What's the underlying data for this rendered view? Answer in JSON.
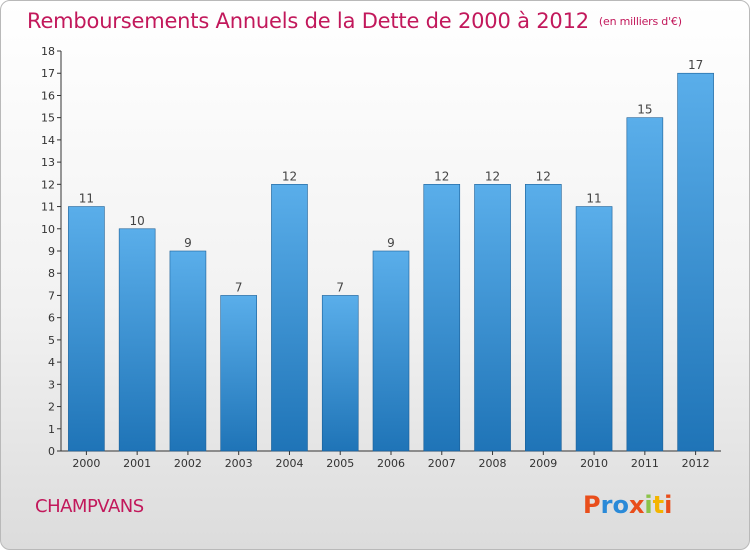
{
  "title": "Remboursements Annuels de la Dette de 2000 à 2012",
  "subtitle": "(en milliers d'€)",
  "commune": "CHAMPVANS",
  "logo": {
    "letters": [
      "P",
      "r",
      "o",
      "x",
      "i",
      "t",
      "i"
    ],
    "colors": [
      "#e94e1b",
      "#2a8ad8",
      "#2a8ad8",
      "#e94e1b",
      "#8bc34a",
      "#f4b400",
      "#e94e1b"
    ]
  },
  "colors": {
    "bar_light": "#5aaeea",
    "bar_dark": "#1f74b7",
    "title": "#c2185b"
  },
  "chart_data": {
    "type": "bar",
    "title": "Remboursements Annuels de la Dette de 2000 à 2012",
    "subtitle": "(en milliers d'€)",
    "xlabel": "",
    "ylabel": "",
    "categories": [
      "2000",
      "2001",
      "2002",
      "2003",
      "2004",
      "2005",
      "2006",
      "2007",
      "2008",
      "2009",
      "2010",
      "2011",
      "2012"
    ],
    "values": [
      11,
      10,
      9,
      7,
      12,
      7,
      9,
      12,
      12,
      12,
      11,
      15,
      17
    ],
    "data_labels": [
      "11",
      "10",
      "9",
      "7",
      "12",
      "7",
      "9",
      "12",
      "12",
      "12",
      "11",
      "15",
      "17"
    ],
    "ylim": [
      0,
      18
    ],
    "yticks": [
      "0",
      "1",
      "2",
      "3",
      "4",
      "5",
      "6",
      "7",
      "8",
      "9",
      "10",
      "11",
      "12",
      "13",
      "14",
      "15",
      "16",
      "17",
      "18"
    ],
    "grid": false,
    "legend": "none"
  }
}
